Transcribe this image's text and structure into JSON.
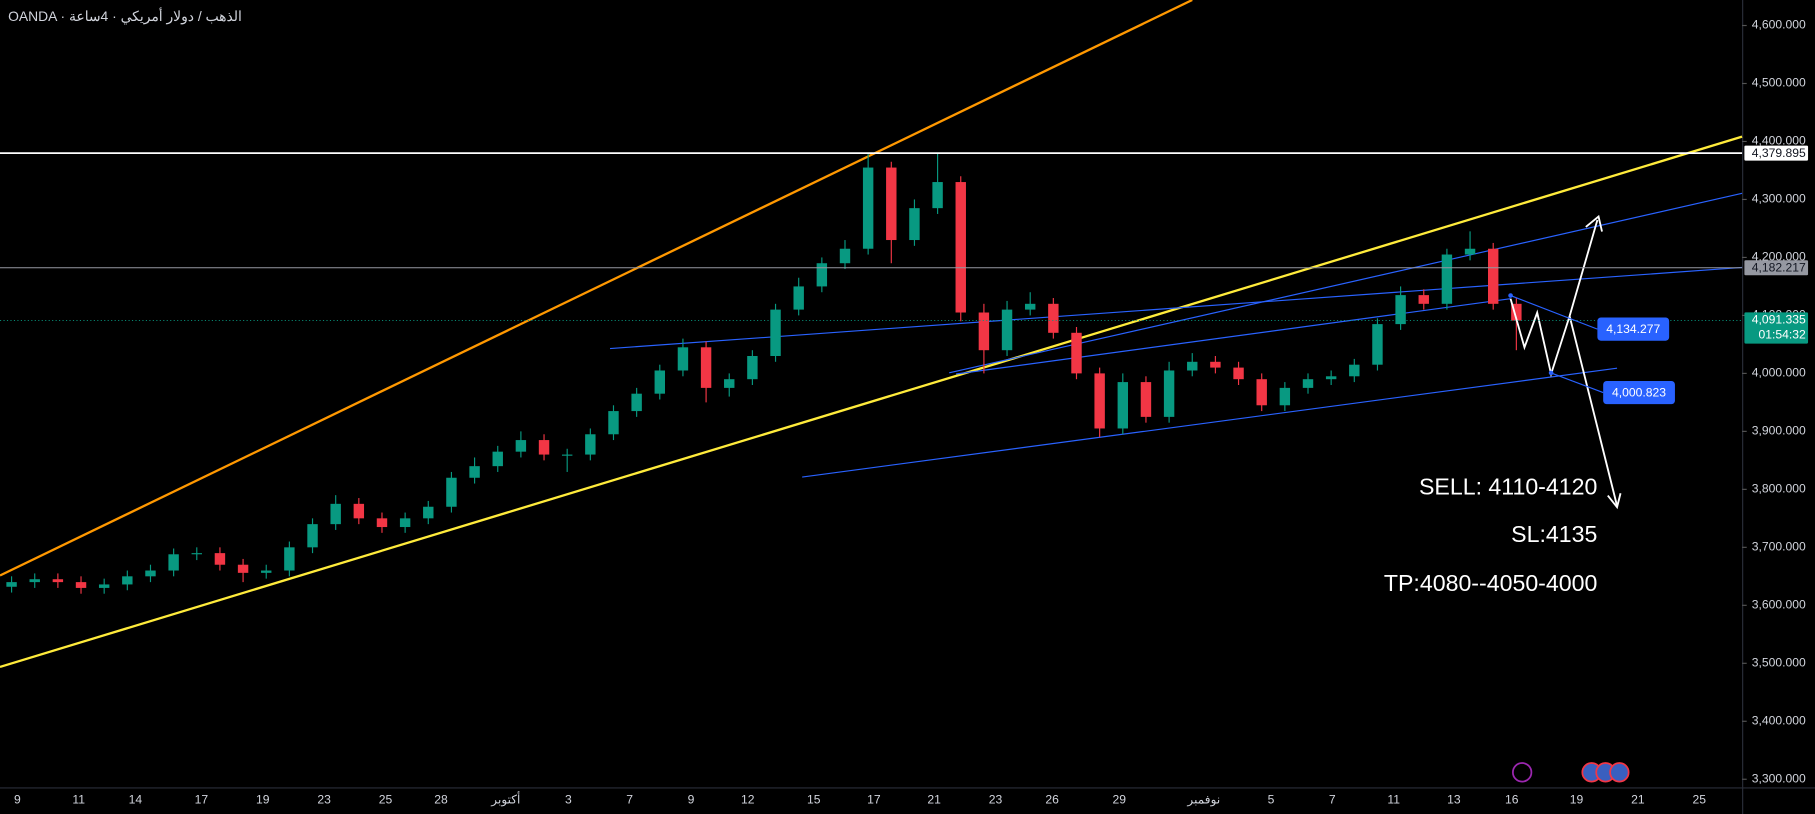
{
  "chart_data": {
    "type": "candlestick",
    "title": "OANDA · الذهب / دولار أمريكي · 4ساعة",
    "x_labels": [
      "9",
      "11",
      "14",
      "17",
      "19",
      "23",
      "25",
      "28",
      "أكتوبر",
      "3",
      "7",
      "9",
      "12",
      "15",
      "17",
      "21",
      "23",
      "26",
      "29",
      "نوفمبر",
      "5",
      "7",
      "11",
      "13",
      "16",
      "19",
      "21",
      "25"
    ],
    "candles": {
      "up_color": "#089981",
      "down_color": "#f23645",
      "open": [
        3632,
        3640,
        3645,
        3640,
        3630,
        3636,
        3650,
        3660,
        3688,
        3690,
        3670,
        3656,
        3660,
        3700,
        3740,
        3775,
        3750,
        3735,
        3750,
        3770,
        3820,
        3840,
        3865,
        3885,
        3860,
        3860,
        3895,
        3935,
        3965,
        4005,
        4045,
        3975,
        3990,
        4030,
        4110,
        4150,
        4190,
        4215,
        4355,
        4230,
        4285,
        4330,
        4105,
        4040,
        4110,
        4120,
        4070,
        4000,
        3905,
        3985,
        3925,
        4005,
        4020,
        4010,
        3990,
        3945,
        3975,
        3990,
        3995,
        4015,
        4085,
        4135,
        4120,
        4205,
        4215,
        4120
      ],
      "high": [
        3650,
        3655,
        3655,
        3650,
        3646,
        3660,
        3670,
        3698,
        3700,
        3700,
        3680,
        3670,
        3710,
        3750,
        3790,
        3785,
        3760,
        3760,
        3780,
        3830,
        3855,
        3875,
        3900,
        3895,
        3870,
        3905,
        3945,
        3975,
        4015,
        4060,
        4055,
        4000,
        4040,
        4120,
        4165,
        4200,
        4230,
        4380,
        4365,
        4300,
        4380,
        4340,
        4120,
        4125,
        4140,
        4130,
        4080,
        4010,
        4000,
        3995,
        4020,
        4035,
        4030,
        4020,
        4000,
        3985,
        4000,
        4005,
        4025,
        4095,
        4150,
        4145,
        4215,
        4245,
        4225,
        4130
      ],
      "low": [
        3622,
        3630,
        3630,
        3620,
        3620,
        3626,
        3640,
        3650,
        3678,
        3660,
        3640,
        3646,
        3650,
        3690,
        3730,
        3740,
        3725,
        3725,
        3740,
        3760,
        3810,
        3830,
        3855,
        3850,
        3830,
        3850,
        3885,
        3925,
        3955,
        3995,
        3950,
        3960,
        3980,
        4020,
        4100,
        4140,
        4180,
        4205,
        4190,
        4220,
        4275,
        4090,
        4000,
        4030,
        4100,
        4060,
        3990,
        3890,
        3895,
        3915,
        3915,
        3995,
        4000,
        3980,
        3935,
        3935,
        3965,
        3980,
        3985,
        4005,
        4075,
        4110,
        4110,
        4195,
        4110,
        4040
      ],
      "close": [
        3640,
        3645,
        3640,
        3630,
        3636,
        3650,
        3660,
        3688,
        3690,
        3670,
        3656,
        3660,
        3700,
        3740,
        3775,
        3750,
        3735,
        3750,
        3770,
        3820,
        3840,
        3865,
        3885,
        3860,
        3860,
        3895,
        3935,
        3965,
        4005,
        4045,
        3975,
        3990,
        4030,
        4110,
        4150,
        4190,
        4215,
        4355,
        4230,
        4285,
        4330,
        4105,
        4040,
        4110,
        4120,
        4070,
        4000,
        3905,
        3985,
        3925,
        4005,
        4020,
        4010,
        3990,
        3945,
        3975,
        3990,
        3995,
        4015,
        4085,
        4135,
        4120,
        4205,
        4215,
        4120,
        4091
      ]
    },
    "ylim": [
      3286,
      4644
    ],
    "yticks": [
      {
        "value": 3300,
        "label": "3,300.000"
      },
      {
        "value": 3400,
        "label": "3,400.000"
      },
      {
        "value": 3500,
        "label": "3,500.000"
      },
      {
        "value": 3600,
        "label": "3,600.000"
      },
      {
        "value": 3700,
        "label": "3,700.000"
      },
      {
        "value": 3800,
        "label": "3,800.000"
      },
      {
        "value": 3900,
        "label": "3,900.000"
      },
      {
        "value": 4000,
        "label": "4,000.000"
      },
      {
        "value": 4100,
        "label": "4,100.000"
      },
      {
        "value": 4200,
        "label": "4,200.000"
      },
      {
        "value": 4300,
        "label": "4,300.000"
      },
      {
        "value": 4400,
        "label": "4,400.000"
      },
      {
        "value": 4500,
        "label": "4,500.000"
      },
      {
        "value": 4600,
        "label": "4,600.000"
      }
    ],
    "levels": [
      {
        "value": 4379.895,
        "label": "4,379.895",
        "color": "#ffffff"
      },
      {
        "value": 4182.217,
        "label": "4,182.217",
        "color": "#9598a1"
      }
    ],
    "current_price": {
      "value": 4091.335,
      "label": "4,091.335",
      "countdown": "01:54:32",
      "color": "#089981"
    },
    "price_labels": [
      {
        "value": 4134.277,
        "label": "4,134.277"
      },
      {
        "value": 4000.823,
        "label": "4,000.823"
      }
    ],
    "annotations": [
      "SELL: 4110-4120",
      "SL:4135",
      "TP:4080--4050-4000"
    ]
  }
}
